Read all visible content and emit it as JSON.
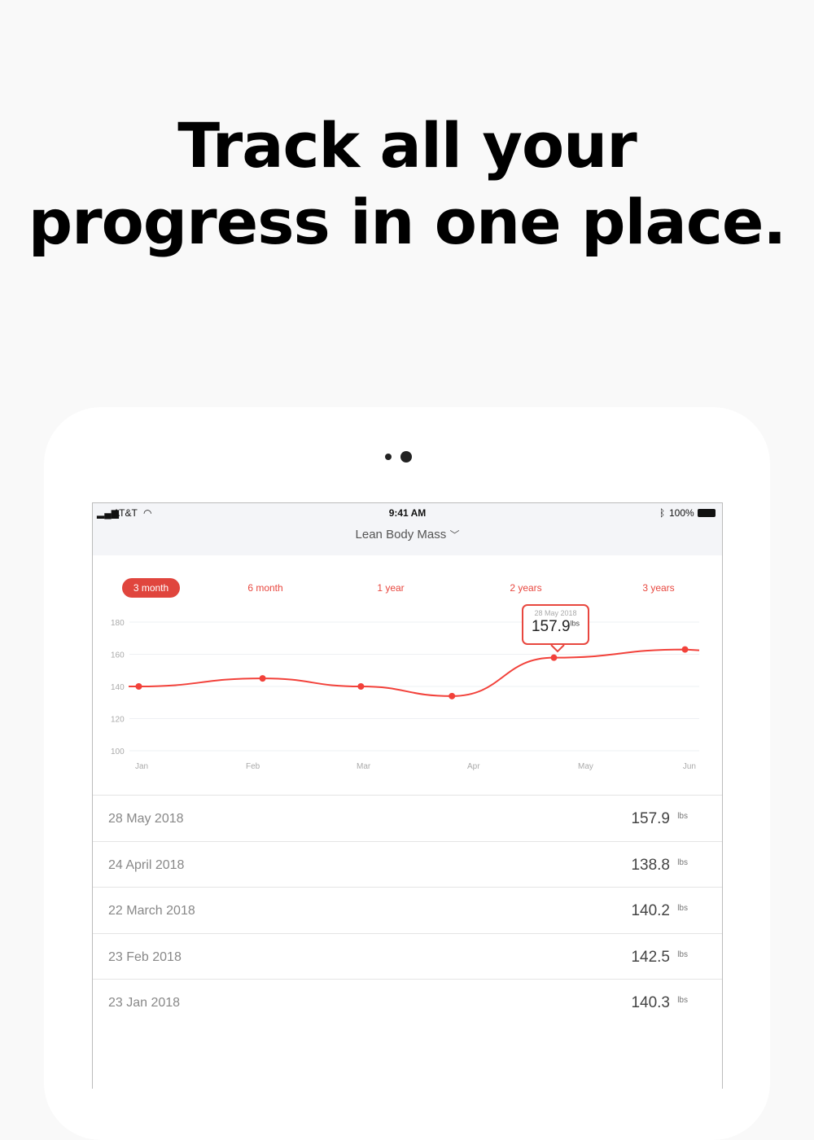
{
  "headline": {
    "line1": "Track all your",
    "line2": "progress in one place."
  },
  "status_bar": {
    "carrier": "AT&T",
    "time": "9:41 AM",
    "battery": "100%",
    "icons": [
      "signal-icon",
      "wifi-icon",
      "bluetooth-icon",
      "battery-icon"
    ]
  },
  "nav": {
    "title": "Lean Body Mass",
    "icon": "chevron-down-icon"
  },
  "tabs": [
    {
      "label": "3 month",
      "active": true
    },
    {
      "label": "6 month"
    },
    {
      "label": "1 year"
    },
    {
      "label": "2 years"
    },
    {
      "label": "3 years"
    }
  ],
  "accent": "#e8473f",
  "chart_data": {
    "type": "line",
    "yticks": [
      "180",
      "160",
      "140",
      "120",
      "100"
    ],
    "ylim": [
      100,
      180
    ],
    "xticks": [
      "Jan",
      "Feb",
      "Mar",
      "Apr",
      "May",
      "Jun"
    ],
    "grid": true,
    "points": [
      {
        "x": "2018-01-02",
        "y": 140
      },
      {
        "x": "2018-02-05",
        "y": 145
      },
      {
        "x": "2018-03-04",
        "y": 140
      },
      {
        "x": "2018-03-29",
        "y": 134
      },
      {
        "x": "2018-04-26",
        "y": 157.9
      },
      {
        "x": "2018-06-01",
        "y": 163
      }
    ],
    "tooltip": {
      "date": "28 May 2018",
      "value": "157.9",
      "unit": "lbs"
    }
  },
  "entries": [
    {
      "date": "28 May 2018",
      "value": "157.9",
      "unit": "lbs"
    },
    {
      "date": "24 April 2018",
      "value": "138.8",
      "unit": "lbs"
    },
    {
      "date": "22 March 2018",
      "value": "140.2",
      "unit": "lbs"
    },
    {
      "date": "23 Feb 2018",
      "value": "142.5",
      "unit": "lbs"
    },
    {
      "date": "23 Jan 2018",
      "value": "140.3",
      "unit": "lbs"
    }
  ]
}
